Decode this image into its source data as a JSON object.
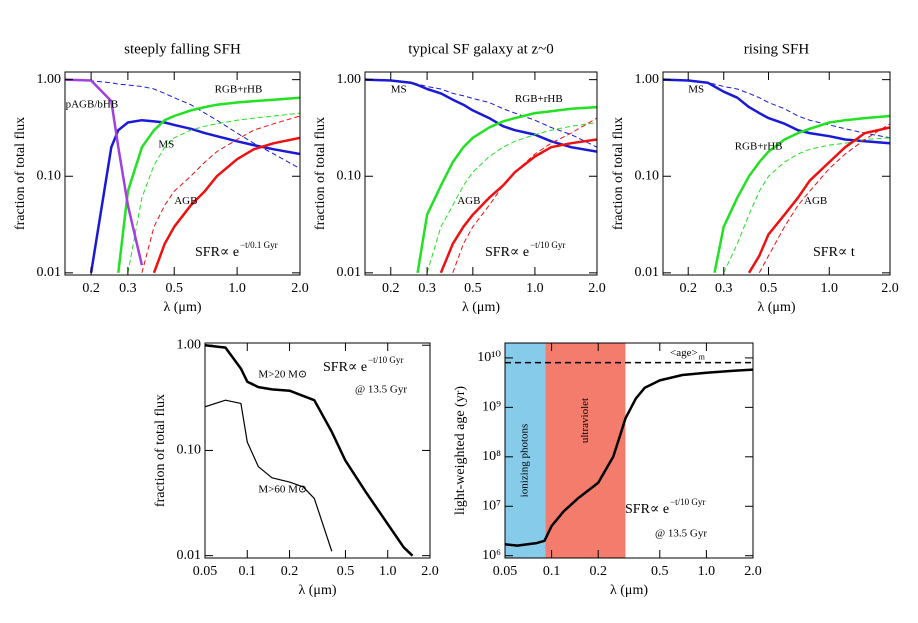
{
  "chart_data": [
    {
      "type": "line",
      "title": "steeply falling SFH",
      "xlabel": "λ (μm)",
      "ylabel": "fraction of total flux",
      "log_x": true,
      "log_y": true,
      "xlim": [
        0.15,
        2.0
      ],
      "ylim": [
        0.0095,
        1.2
      ],
      "xticks": [
        0.2,
        0.3,
        0.5,
        {
          "value": 1,
          "label": "1.0"
        },
        {
          "value": 2,
          "label": "2.0"
        }
      ],
      "yticks": [
        {
          "value": 0.01,
          "label": "0.01"
        },
        {
          "value": 0.1,
          "label": "0.10"
        },
        {
          "value": 1,
          "label": "1.00"
        }
      ],
      "x": [
        0.15,
        0.2,
        0.25,
        0.27,
        0.3,
        0.35,
        0.4,
        0.45,
        0.5,
        0.6,
        0.7,
        0.8,
        1.0,
        1.2,
        1.5,
        2.0
      ],
      "series": [
        {
          "name": "MS",
          "color": "#1a1ad6",
          "width": 2.5,
          "values": [
            null,
            0.01,
            0.2,
            0.3,
            0.36,
            0.38,
            0.37,
            0.36,
            0.34,
            0.31,
            0.28,
            0.26,
            0.23,
            0.21,
            0.19,
            0.17
          ]
        },
        {
          "color": "#1a1ad6",
          "width": 1,
          "dashed": true,
          "values": [
            1.0,
            0.97,
            0.93,
            0.9,
            0.88,
            0.85,
            0.8,
            0.72,
            0.65,
            0.55,
            0.45,
            0.38,
            0.28,
            0.22,
            0.17,
            0.12
          ]
        },
        {
          "name": "RGB+rHB",
          "color": "#22e022",
          "width": 2.5,
          "values": [
            null,
            null,
            null,
            0.01,
            0.07,
            0.2,
            0.3,
            0.38,
            0.42,
            0.48,
            0.52,
            0.55,
            0.58,
            0.6,
            0.62,
            0.65
          ]
        },
        {
          "color": "#22e022",
          "width": 1,
          "dashed": true,
          "values": [
            null,
            null,
            null,
            null,
            0.01,
            0.06,
            0.13,
            0.2,
            0.25,
            0.3,
            0.33,
            0.35,
            0.38,
            0.4,
            0.42,
            0.45
          ]
        },
        {
          "name": "AGB",
          "color": "#ee1111",
          "width": 2.5,
          "values": [
            null,
            null,
            null,
            null,
            null,
            null,
            0.01,
            0.02,
            0.03,
            0.05,
            0.07,
            0.1,
            0.15,
            0.19,
            0.22,
            0.25
          ]
        },
        {
          "color": "#ee1111",
          "width": 1,
          "dashed": true,
          "values": [
            null,
            null,
            null,
            null,
            null,
            0.01,
            0.03,
            0.05,
            0.07,
            0.1,
            0.14,
            0.18,
            0.24,
            0.3,
            0.35,
            0.42
          ]
        },
        {
          "name": "pAGB/bHB",
          "color": "#a040e0",
          "width": 2.5,
          "values": [
            1.0,
            0.98,
            0.6,
            0.2,
            0.05,
            0.012,
            null,
            null,
            null,
            null,
            null,
            null,
            null,
            null,
            null,
            null
          ]
        }
      ],
      "annotations": [
        {
          "text": "SFR∝ e",
          "sup": "−t/0.1 Gyr"
        }
      ]
    },
    {
      "type": "line",
      "title": "typical SF galaxy at z~0",
      "xlabel": "λ (μm)",
      "ylabel": "fraction of total flux",
      "log_x": true,
      "log_y": true,
      "xlim": [
        0.15,
        2.0
      ],
      "ylim": [
        0.0095,
        1.2
      ],
      "xticks": [
        0.2,
        0.3,
        0.5,
        {
          "value": 1,
          "label": "1.0"
        },
        {
          "value": 2,
          "label": "2.0"
        }
      ],
      "yticks": [
        {
          "value": 0.01,
          "label": "0.01"
        },
        {
          "value": 0.1,
          "label": "0.10"
        },
        {
          "value": 1,
          "label": "1.00"
        }
      ],
      "x": [
        0.15,
        0.2,
        0.25,
        0.27,
        0.3,
        0.35,
        0.4,
        0.45,
        0.5,
        0.6,
        0.7,
        0.8,
        1.0,
        1.2,
        1.5,
        2.0
      ],
      "series": [
        {
          "name": "MS",
          "color": "#1a1ad6",
          "width": 2.5,
          "values": [
            1.0,
            0.98,
            0.93,
            0.88,
            0.8,
            0.72,
            0.62,
            0.55,
            0.48,
            0.4,
            0.33,
            0.3,
            0.27,
            0.23,
            0.2,
            0.18
          ]
        },
        {
          "color": "#1a1ad6",
          "width": 1,
          "dashed": true,
          "values": [
            1.0,
            0.97,
            0.94,
            0.9,
            0.85,
            0.8,
            0.72,
            0.68,
            0.64,
            0.58,
            0.5,
            0.45,
            0.38,
            0.32,
            0.27,
            0.2
          ]
        },
        {
          "name": "RGB+rHB",
          "color": "#22e022",
          "width": 2.5,
          "values": [
            null,
            null,
            null,
            0.01,
            0.04,
            0.08,
            0.14,
            0.2,
            0.25,
            0.32,
            0.37,
            0.4,
            0.45,
            0.47,
            0.5,
            0.52
          ]
        },
        {
          "color": "#22e022",
          "width": 1,
          "dashed": true,
          "values": [
            null,
            null,
            null,
            null,
            0.01,
            0.03,
            0.05,
            0.08,
            0.11,
            0.16,
            0.2,
            0.23,
            0.27,
            0.3,
            0.33,
            0.36
          ]
        },
        {
          "name": "AGB",
          "color": "#ee1111",
          "width": 2.5,
          "values": [
            null,
            null,
            null,
            null,
            null,
            0.01,
            0.02,
            0.03,
            0.04,
            0.06,
            0.08,
            0.11,
            0.16,
            0.2,
            0.22,
            0.24
          ]
        },
        {
          "color": "#ee1111",
          "width": 1,
          "dashed": true,
          "values": [
            null,
            null,
            null,
            null,
            null,
            null,
            0.01,
            0.02,
            0.03,
            0.05,
            0.08,
            0.11,
            0.17,
            0.22,
            0.28,
            0.4
          ]
        }
      ],
      "annotations": [
        {
          "text": "SFR∝ e",
          "sup": "−t/10 Gyr"
        }
      ]
    },
    {
      "type": "line",
      "title": "rising SFH",
      "xlabel": "λ (μm)",
      "ylabel": "fraction of total flux",
      "log_x": true,
      "log_y": true,
      "xlim": [
        0.15,
        2.0
      ],
      "ylim": [
        0.0095,
        1.2
      ],
      "xticks": [
        0.2,
        0.3,
        0.5,
        {
          "value": 1,
          "label": "1.0"
        },
        {
          "value": 2,
          "label": "2.0"
        }
      ],
      "yticks": [
        {
          "value": 0.01,
          "label": "0.01"
        },
        {
          "value": 0.1,
          "label": "0.10"
        },
        {
          "value": 1,
          "label": "1.00"
        }
      ],
      "x": [
        0.15,
        0.2,
        0.25,
        0.27,
        0.3,
        0.35,
        0.4,
        0.45,
        0.5,
        0.6,
        0.7,
        0.8,
        1.0,
        1.2,
        1.5,
        2.0
      ],
      "series": [
        {
          "name": "MS",
          "color": "#1a1ad6",
          "width": 2.5,
          "values": [
            1.0,
            0.98,
            0.93,
            0.85,
            0.75,
            0.65,
            0.52,
            0.45,
            0.4,
            0.35,
            0.3,
            0.28,
            0.26,
            0.24,
            0.23,
            0.22
          ]
        },
        {
          "color": "#1a1ad6",
          "width": 1,
          "dashed": true,
          "values": [
            1.0,
            0.97,
            0.93,
            0.9,
            0.85,
            0.8,
            0.72,
            0.65,
            0.58,
            0.5,
            0.42,
            0.38,
            0.34,
            0.31,
            0.28,
            0.25
          ]
        },
        {
          "name": "RGB+rHB",
          "color": "#22e022",
          "width": 2.5,
          "values": [
            null,
            null,
            null,
            0.01,
            0.03,
            0.06,
            0.1,
            0.14,
            0.18,
            0.24,
            0.28,
            0.31,
            0.36,
            0.38,
            0.4,
            0.42
          ]
        },
        {
          "color": "#22e022",
          "width": 1,
          "dashed": true,
          "values": [
            null,
            null,
            null,
            null,
            0.01,
            0.02,
            0.04,
            0.07,
            0.1,
            0.14,
            0.17,
            0.19,
            0.21,
            0.22,
            0.24,
            0.25
          ]
        },
        {
          "name": "AGB",
          "color": "#ee1111",
          "width": 2.5,
          "values": [
            null,
            null,
            null,
            null,
            null,
            null,
            0.01,
            0.015,
            0.025,
            0.04,
            0.06,
            0.09,
            0.14,
            0.2,
            0.28,
            0.32
          ]
        },
        {
          "color": "#ee1111",
          "width": 1,
          "dashed": true,
          "values": [
            null,
            null,
            null,
            null,
            null,
            null,
            null,
            0.01,
            0.015,
            0.03,
            0.05,
            0.07,
            0.12,
            0.17,
            0.24,
            0.35
          ]
        }
      ],
      "annotations": [
        {
          "text": "SFR∝ t"
        }
      ]
    },
    {
      "type": "line",
      "xlabel": "λ (μm)",
      "ylabel": "fraction of total flux",
      "log_x": true,
      "log_y": true,
      "xlim": [
        0.05,
        2.0
      ],
      "ylim": [
        0.0095,
        1.05
      ],
      "xticks": [
        0.05,
        0.1,
        0.2,
        0.5,
        {
          "value": 1,
          "label": "1.0"
        },
        {
          "value": 2,
          "label": "2.0"
        }
      ],
      "yticks": [
        {
          "value": 0.01,
          "label": "0.01"
        },
        {
          "value": 0.1,
          "label": "0.10"
        },
        {
          "value": 1,
          "label": "1.00"
        }
      ],
      "x": [
        0.05,
        0.07,
        0.09,
        0.1,
        0.12,
        0.15,
        0.2,
        0.25,
        0.3,
        0.4,
        0.5,
        0.7,
        1.0,
        1.3,
        1.5
      ],
      "series": [
        {
          "name": "M>20 M⊙",
          "color": "#000000",
          "width": 2.5,
          "values": [
            1.0,
            0.95,
            0.6,
            0.45,
            0.4,
            0.38,
            0.37,
            0.33,
            0.3,
            0.15,
            0.08,
            0.04,
            0.02,
            0.012,
            0.01
          ]
        },
        {
          "name": "M>60 M⊙",
          "color": "#000000",
          "width": 1.2,
          "values": [
            0.26,
            0.3,
            0.28,
            0.12,
            0.07,
            0.055,
            0.05,
            0.045,
            0.035,
            0.011,
            null,
            null,
            null,
            null,
            null
          ]
        }
      ],
      "annotations": [
        {
          "text": "SFR∝ e",
          "sup": "−t/10 Gyr"
        },
        {
          "text": "@ 13.5 Gyr"
        }
      ]
    },
    {
      "type": "line",
      "xlabel": "λ (μm)",
      "ylabel": "light-weighted age (yr)",
      "log_x": true,
      "log_y": true,
      "xlim": [
        0.05,
        2.0
      ],
      "ylim": [
        900000,
        20000000000
      ],
      "xticks": [
        0.05,
        0.1,
        0.2,
        0.5,
        {
          "value": 1,
          "label": "1.0"
        },
        {
          "value": 2,
          "label": "2.0"
        }
      ],
      "yticks": [
        {
          "value": 1000000,
          "label": "10⁶"
        },
        {
          "value": 10000000,
          "label": "10⁷"
        },
        {
          "value": 100000000,
          "label": "10⁸"
        },
        {
          "value": 1000000000,
          "label": "10⁹"
        },
        {
          "value": 10000000000,
          "label": "10¹⁰"
        }
      ],
      "bands": [
        {
          "label": "ionizing photons",
          "x0": 0.05,
          "x1": 0.0912,
          "color": "#86cbea"
        },
        {
          "label": "ultraviolet",
          "x0": 0.0912,
          "x1": 0.3,
          "color": "#f47c6c"
        }
      ],
      "hline": {
        "label": "<age>",
        "sub": "m",
        "value": 8000000000
      },
      "x": [
        0.05,
        0.06,
        0.07,
        0.08,
        0.09,
        0.1,
        0.12,
        0.15,
        0.2,
        0.25,
        0.28,
        0.3,
        0.35,
        0.4,
        0.5,
        0.7,
        1.0,
        1.5,
        2.0
      ],
      "series": [
        {
          "color": "#000000",
          "width": 2.5,
          "values": [
            1700000,
            1600000,
            1700000,
            1800000,
            2000000,
            4000000,
            8000000,
            15000000,
            30000000,
            100000000,
            300000000,
            600000000,
            1500000000,
            2500000000,
            3500000000,
            4500000000,
            5000000000,
            5500000000,
            5800000000
          ]
        }
      ],
      "annotations": [
        {
          "text": "SFR∝ e",
          "sup": "−t/10 Gyr"
        },
        {
          "text": "@ 13.5 Gyr"
        }
      ]
    }
  ]
}
